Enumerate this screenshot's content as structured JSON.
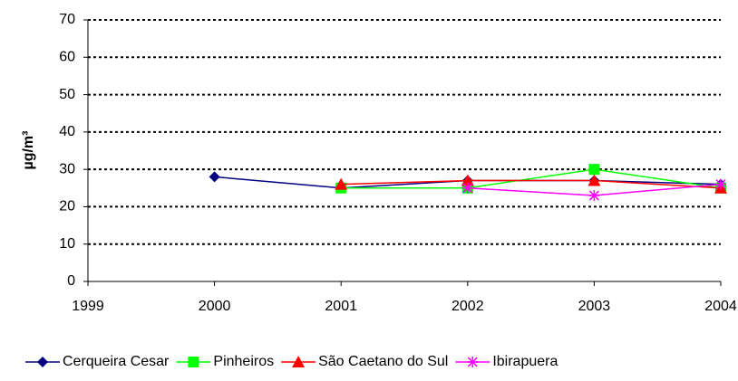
{
  "chart_data": {
    "type": "line",
    "y_label": "µg/m³",
    "x": [
      1999,
      2000,
      2001,
      2002,
      2003,
      2004
    ],
    "xlim": [
      1999,
      2004
    ],
    "xticks": [
      1999,
      2000,
      2001,
      2002,
      2003,
      2004
    ],
    "ylim": [
      0,
      70
    ],
    "yticks": [
      0,
      10,
      20,
      30,
      40,
      50,
      60,
      70
    ],
    "grid": true,
    "legend": "bottom",
    "series": [
      {
        "name": "Cerqueira Cesar",
        "color": "#000080",
        "marker": "diamond",
        "values": [
          null,
          28,
          25,
          27,
          27,
          26
        ]
      },
      {
        "name": "Pinheiros",
        "color": "#00ff00",
        "marker": "square",
        "values": [
          null,
          null,
          25,
          25,
          30,
          25
        ]
      },
      {
        "name": "São Caetano do Sul",
        "color": "#ff0000",
        "marker": "triangle",
        "values": [
          null,
          null,
          26,
          27,
          27,
          25
        ]
      },
      {
        "name": "Ibirapuera",
        "color": "#ff00ff",
        "marker": "asterisk",
        "values": [
          null,
          null,
          null,
          25,
          23,
          26
        ]
      }
    ]
  }
}
